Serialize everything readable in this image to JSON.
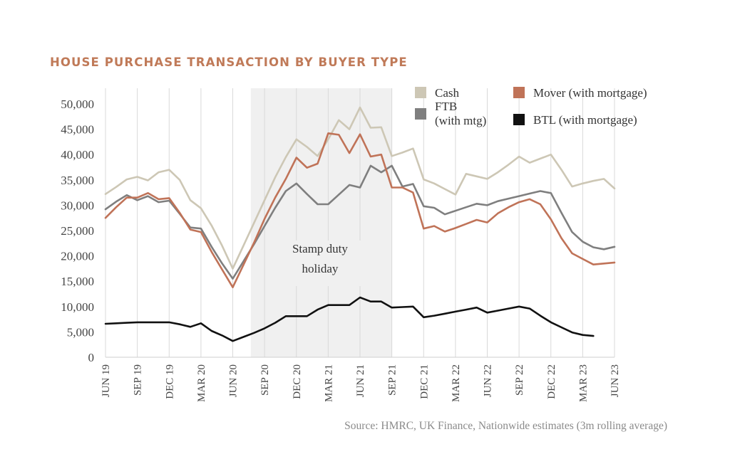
{
  "chart_data": {
    "type": "line",
    "title": "HOUSE PURCHASE TRANSACTION BY BUYER TYPE",
    "xlabel": "",
    "ylabel": "",
    "ylim": [
      0,
      50000
    ],
    "yticks": [
      0,
      5000,
      10000,
      15000,
      20000,
      25000,
      30000,
      35000,
      40000,
      45000,
      50000
    ],
    "ytick_labels": [
      "0",
      "5,000",
      "10,000",
      "15,000",
      "20,000",
      "25,000",
      "30,000",
      "35,000",
      "40,000",
      "45,000",
      "50,000"
    ],
    "x_tick_labels": [
      "JUN 19",
      "SEP 19",
      "DEC 19",
      "MAR 20",
      "JUN 20",
      "SEP 20",
      "DEC 20",
      "MAR 21",
      "JUN 21",
      "SEP 21",
      "DEC 21",
      "MAR 22",
      "JUN 22",
      "SEP 22",
      "DEC 22",
      "MAR 23",
      "JUN 23"
    ],
    "x_start": "JUN 19",
    "x_frequency": "monthly",
    "grid": "vertical",
    "legend_position": "top-right",
    "shaded_region": {
      "label": "Stamp duty holiday",
      "label_lines": [
        "Stamp duty",
        "holiday"
      ],
      "start_month_index": 14,
      "end_month_index": 27,
      "color": "#f0f0f0"
    },
    "series": [
      {
        "name": "Cash",
        "legend_lines": [
          "Cash"
        ],
        "color": "#cdc7b5",
        "values": [
          32200,
          33600,
          35100,
          35600,
          34900,
          36500,
          37000,
          35000,
          31000,
          29400,
          26000,
          22000,
          17500,
          22000,
          26500,
          31000,
          35500,
          39500,
          43000,
          41500,
          39700,
          43000,
          46800,
          45000,
          49300,
          45300,
          45400,
          39700,
          40400,
          41200,
          35100,
          34300,
          33200,
          32100,
          36200,
          35700,
          35200,
          36500,
          38000,
          39600,
          38400,
          39200,
          40000,
          37000,
          33700,
          34300,
          34800,
          35200,
          33300
        ]
      },
      {
        "name": "FTB (with mtg)",
        "legend_lines": [
          "FTB",
          "(with mtg)"
        ],
        "color": "#7f7f7f",
        "values": [
          29200,
          30700,
          32000,
          31000,
          31800,
          30600,
          30900,
          28300,
          25600,
          25400,
          21800,
          18500,
          15500,
          18900,
          22300,
          25900,
          29500,
          32800,
          34300,
          32200,
          30200,
          30200,
          32100,
          34000,
          33500,
          37800,
          36500,
          37800,
          33700,
          34200,
          29800,
          29500,
          28200,
          28900,
          29600,
          30300,
          30000,
          30800,
          31300,
          31800,
          32300,
          32800,
          32400,
          28500,
          24700,
          22800,
          21700,
          21300,
          21800
        ]
      },
      {
        "name": "Mover (with mortgage)",
        "legend_lines": [
          "Mover (with mortgage)"
        ],
        "color": "#c07358",
        "values": [
          27500,
          29600,
          31500,
          31500,
          32400,
          31200,
          31400,
          28500,
          25200,
          24700,
          20800,
          17300,
          13800,
          18200,
          22600,
          27300,
          31500,
          35200,
          39400,
          37400,
          38200,
          44200,
          43900,
          40300,
          44000,
          39600,
          40000,
          33500,
          33500,
          32500,
          25400,
          25900,
          24800,
          25500,
          26300,
          27100,
          26600,
          28400,
          29600,
          30600,
          31200,
          30200,
          27200,
          23500,
          20500,
          19400,
          18300,
          18500,
          18700
        ]
      },
      {
        "name": "BTL (with mortgage)",
        "legend_lines": [
          "BTL (with mortgage)"
        ],
        "color": "#111111",
        "values": [
          6600,
          6700,
          6800,
          6900,
          6900,
          6900,
          6900,
          6500,
          6000,
          6700,
          5200,
          4300,
          3200,
          4000,
          4800,
          5700,
          6800,
          8100,
          8100,
          8100,
          9400,
          10300,
          10300,
          10300,
          11800,
          11000,
          11000,
          9800,
          9900,
          10000,
          7900,
          8200,
          8600,
          9000,
          9400,
          9800,
          8800,
          9200,
          9600,
          10000,
          9600,
          8200,
          6900,
          5900,
          4900,
          4400,
          4200
        ]
      }
    ]
  },
  "source_note": "Source:  HMRC, UK Finance, Nationwide estimates (3m rolling average)"
}
